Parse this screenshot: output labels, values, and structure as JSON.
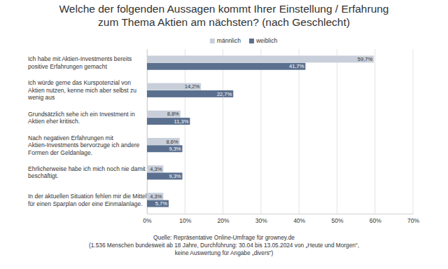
{
  "chart_data": {
    "type": "bar",
    "orientation": "horizontal",
    "title": "Welche der folgenden Aussagen kommt Ihrer Einstellung / Erfahrung zum Thema Aktien am nächsten? (nach Geschlecht)",
    "categories": [
      "Ich habe mit Aktien-Investments bereits positive Erfahrungen gemacht",
      "Ich würde gerne das Kurspotenzial von Aktien nutzen, kenne mich aber selbst zu wenig aus",
      "Grundsätzlich sehe ich ein Investment in Aktien eher kritisch.",
      "Nach negativen Erfahrungen mit Aktien-Investments bervorzuge ich andere Formen der Geldanlage.",
      "Ehrlicherweise habe ich mich noch nie damit beschäftigt.",
      "In der aktuellen Situation fehlen mir die Mittel für einen Sparplan oder eine Einmalanlage."
    ],
    "series": [
      {
        "name": "männlich",
        "color": "#c9cfda",
        "values": [
          59.7,
          14.2,
          8.8,
          8.6,
          4.3,
          4.3
        ],
        "value_labels": [
          "59,7%",
          "14,2%",
          "8,8%",
          "8,6%",
          "4,3%",
          "4,3%"
        ]
      },
      {
        "name": "weiblich",
        "color": "#5b708f",
        "values": [
          41.7,
          22.7,
          11.3,
          9.3,
          9.3,
          5.7
        ],
        "value_labels": [
          "41,7%",
          "22,7%",
          "11,3%",
          "9,3%",
          "9,3%",
          "5,7%"
        ]
      }
    ],
    "xlim": [
      0,
      70
    ],
    "xticks": [
      {
        "value": 0,
        "label": "0%"
      },
      {
        "value": 10,
        "label": "10%"
      },
      {
        "value": 20,
        "label": "20%"
      },
      {
        "value": 30,
        "label": "30%"
      },
      {
        "value": 40,
        "label": "40%"
      },
      {
        "value": 50,
        "label": "50%"
      },
      {
        "value": 60,
        "label": "60%"
      },
      {
        "value": 70,
        "label": "70%"
      }
    ],
    "grid": true,
    "legend": "top",
    "data_labels": true,
    "annotations": [
      "Quelle: Repräsentative Online-Umfrage für growney.de",
      "(1.536 Menschen bundesweit ab 18 Jahre, Durchführung: 30.04 bis 13.05.2024 von „Heute und Morgen“,",
      "keine Auswertung für Angabe „divers“)"
    ]
  }
}
